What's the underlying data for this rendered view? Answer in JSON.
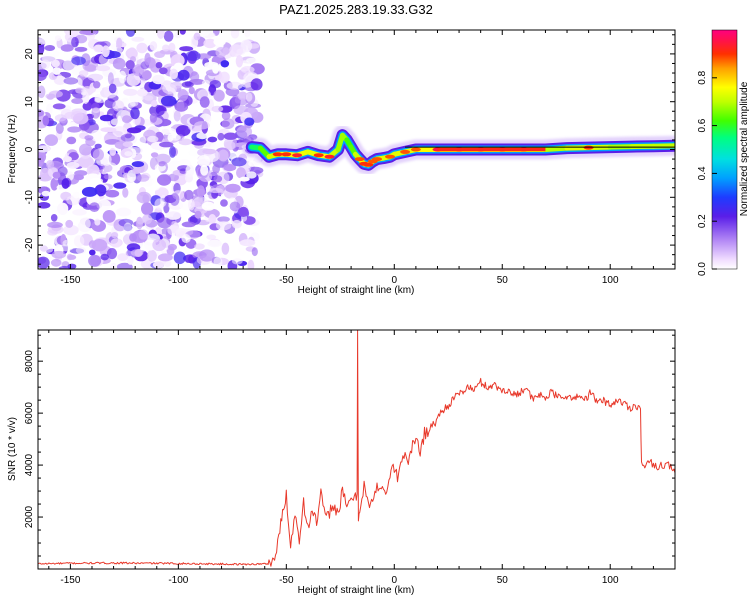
{
  "title": "PAZ1.2025.283.19.33.G32",
  "chart_data": [
    {
      "type": "heatmap",
      "name": "spectrogram",
      "xlabel": "Height of straight line (km)",
      "ylabel": "Frequency (Hz)",
      "xlim": [
        -165,
        130
      ],
      "ylim": [
        -25,
        25
      ],
      "xticks": [
        -150,
        -100,
        -50,
        0,
        50,
        100
      ],
      "xtick_labels": [
        "-150",
        "-100",
        "-50",
        "0",
        "50",
        "100"
      ],
      "yticks": [
        -20,
        -10,
        0,
        10,
        20
      ],
      "ytick_labels": [
        "-20",
        "-10",
        "0",
        "10",
        "20"
      ],
      "noise_region_x": [
        -165,
        -63
      ],
      "signal_track": {
        "x": [
          -66,
          -62,
          -58,
          -54,
          -50,
          -45,
          -40,
          -35,
          -30,
          -26,
          -24,
          -22,
          -20,
          -18,
          -16,
          -14,
          -12,
          -10,
          -8,
          -5,
          -2,
          0,
          5,
          10,
          20,
          30,
          40,
          50,
          60,
          70,
          80,
          90,
          100,
          110,
          120,
          130
        ],
        "freq": [
          0.5,
          0.3,
          -1.5,
          -1.0,
          -1.0,
          -1.2,
          -0.5,
          -1.2,
          -1.5,
          0.0,
          3.0,
          2.0,
          0.5,
          -1.0,
          -2.0,
          -3.0,
          -3.2,
          -2.5,
          -2.0,
          -1.8,
          -1.5,
          -1.0,
          -0.5,
          0.0,
          0.0,
          0.0,
          0.0,
          0.0,
          0.0,
          0.0,
          0.3,
          0.4,
          0.5,
          0.6,
          0.7,
          0.8
        ],
        "amplitude": [
          0.15,
          0.3,
          0.6,
          0.85,
          0.85,
          0.9,
          0.75,
          0.85,
          0.9,
          0.5,
          0.7,
          0.5,
          0.3,
          0.6,
          0.8,
          0.85,
          0.85,
          0.8,
          0.8,
          0.75,
          0.8,
          0.75,
          0.8,
          0.8,
          0.95,
          0.95,
          0.95,
          0.95,
          0.95,
          0.6,
          0.7,
          0.85,
          0.6,
          0.65,
          0.7,
          0.65
        ]
      },
      "black_line_segment": {
        "x": [
          5,
          130
        ],
        "freq": 0.5
      }
    },
    {
      "type": "line",
      "name": "snr",
      "xlabel": "Height of straight line (km)",
      "ylabel": "SNR (10 * v/v)",
      "xlim": [
        -165,
        130
      ],
      "ylim": [
        0,
        9200
      ],
      "xticks": [
        -150,
        -100,
        -50,
        0,
        50,
        100
      ],
      "xtick_labels": [
        "-150",
        "-100",
        "-50",
        "0",
        "50",
        "100"
      ],
      "yticks": [
        2000,
        4000,
        6000,
        8000
      ],
      "ytick_labels": [
        "2000",
        "4000",
        "6000",
        "8000"
      ],
      "color": "#e8392b",
      "series": [
        {
          "name": "SNR",
          "x": [
            -165,
            -150,
            -130,
            -110,
            -90,
            -70,
            -58,
            -55,
            -53,
            -50,
            -48,
            -46,
            -44,
            -42,
            -40,
            -38,
            -36,
            -34,
            -32,
            -30,
            -28,
            -26,
            -24,
            -22,
            -20,
            -18,
            -17.2,
            -17,
            -16.6,
            -16,
            -14,
            -12,
            -10,
            -8,
            -6,
            -4,
            -2,
            0,
            2,
            4,
            6,
            8,
            10,
            12,
            14,
            16,
            18,
            20,
            22,
            25,
            28,
            31,
            34,
            37,
            40,
            43,
            46,
            49,
            52,
            55,
            58,
            61,
            64,
            67,
            70,
            73,
            76,
            79,
            82,
            85,
            88,
            91,
            94,
            97,
            100,
            103,
            106,
            109,
            112,
            114,
            114.5,
            116,
            118,
            120,
            122,
            124,
            126,
            128,
            130
          ],
          "y": [
            200,
            220,
            230,
            220,
            200,
            180,
            200,
            500,
            1500,
            2900,
            800,
            2200,
            1200,
            2600,
            1500,
            2400,
            1700,
            2900,
            1900,
            2200,
            2500,
            2100,
            3000,
            2300,
            2800,
            2700,
            2900,
            9200,
            2000,
            2300,
            3300,
            2400,
            2600,
            3100,
            3300,
            2900,
            3600,
            3900,
            3500,
            4500,
            4100,
            4600,
            5000,
            4600,
            5200,
            5300,
            5600,
            5800,
            6100,
            6300,
            6600,
            6800,
            7000,
            6900,
            7200,
            7000,
            7100,
            6900,
            6900,
            6700,
            6800,
            7000,
            6500,
            6700,
            6600,
            6800,
            6600,
            6700,
            6500,
            6700,
            6500,
            6800,
            6400,
            6500,
            6300,
            6500,
            6400,
            6200,
            6300,
            6200,
            4000,
            3950,
            4100,
            4050,
            3950,
            4000,
            4050,
            3900,
            3700
          ]
        }
      ]
    }
  ],
  "colorbar": {
    "label": "Normalized spectral amplitude",
    "ticks": [
      0.0,
      0.2,
      0.4,
      0.6,
      0.8
    ],
    "tick_labels": [
      "0.0",
      "0.2",
      "0.4",
      "0.6",
      "0.8"
    ],
    "range": [
      0,
      1
    ]
  }
}
